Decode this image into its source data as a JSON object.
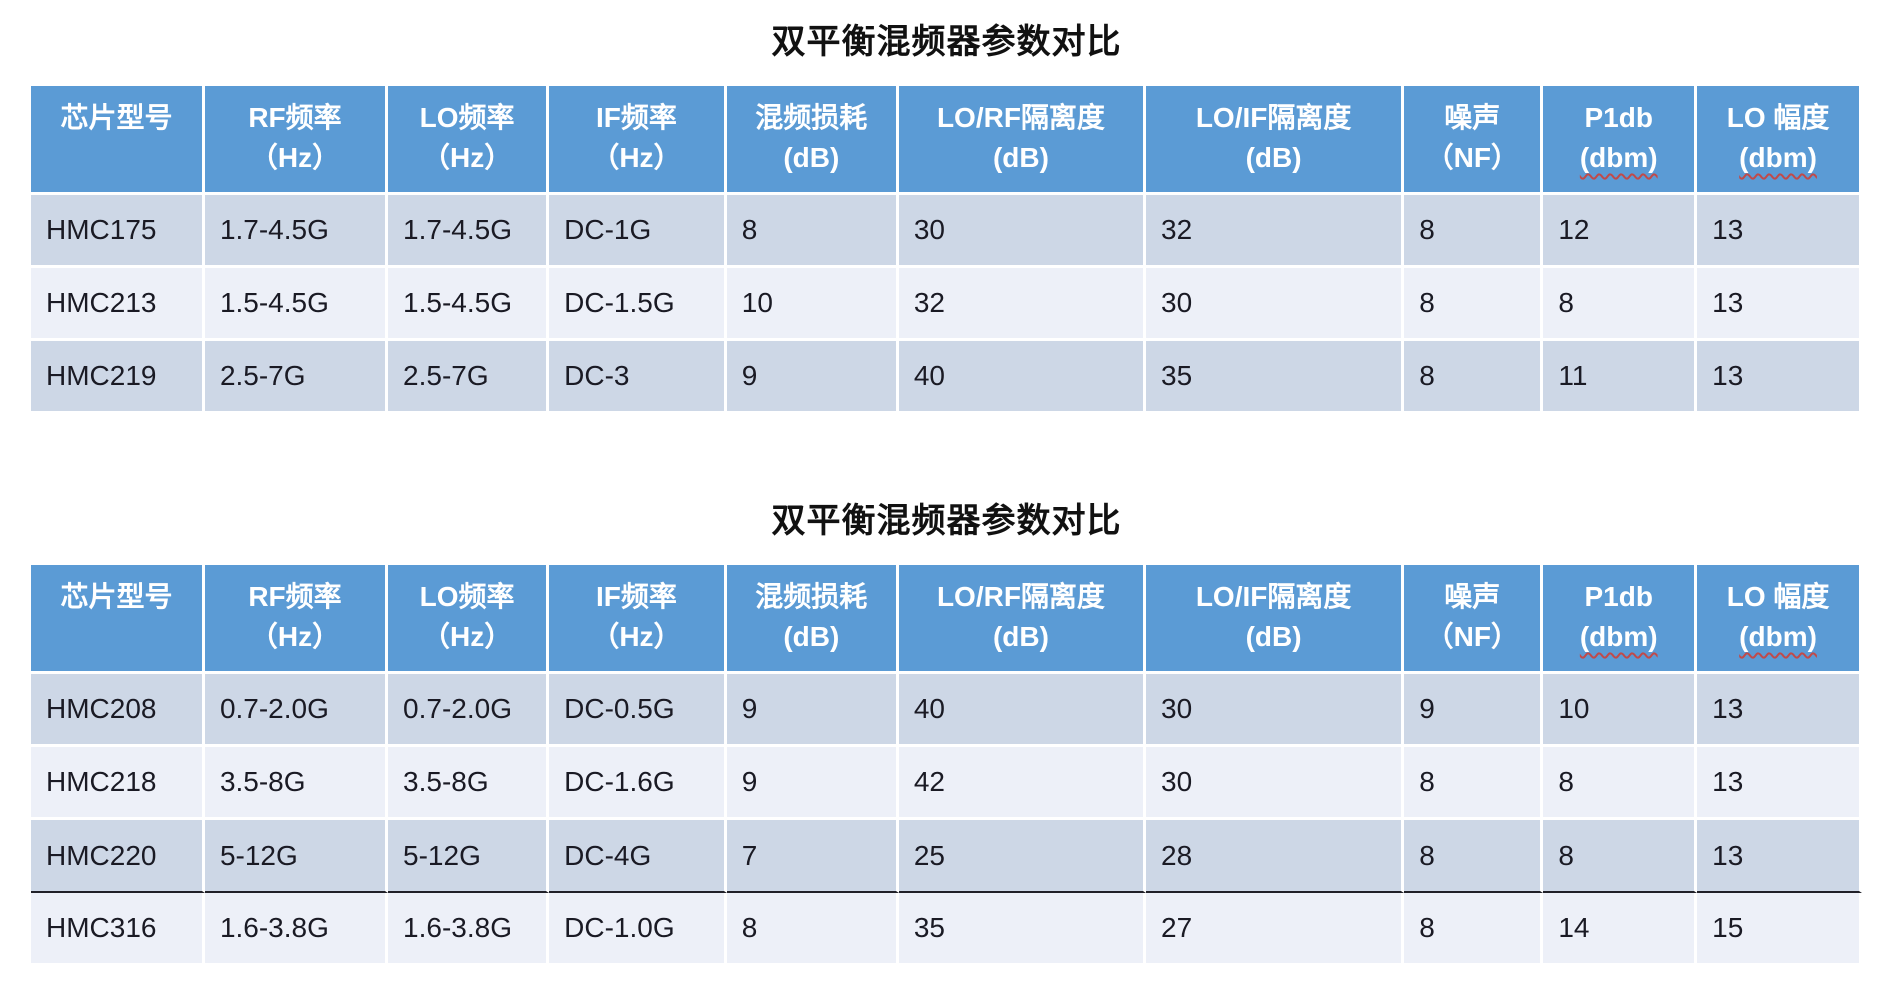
{
  "colors": {
    "header_bg": "#5B9BD5",
    "header_text": "#FFFFFF",
    "row_dark": "#CDD7E6",
    "row_light": "#EDF0F8",
    "body_text": "#1A1A24",
    "title_text": "#111111",
    "divider": "#202028",
    "squiggle": "#C04A4A"
  },
  "tables": [
    {
      "title": "双平衡混频器参数对比",
      "columns": [
        {
          "lines": [
            "芯片型号"
          ]
        },
        {
          "lines": [
            "RF频率",
            "（Hz）"
          ]
        },
        {
          "lines": [
            "LO频率",
            "（Hz）"
          ]
        },
        {
          "lines": [
            "IF频率",
            "（Hz）"
          ]
        },
        {
          "lines": [
            "混频损耗",
            "(dB)"
          ]
        },
        {
          "lines": [
            "LO/RF隔离度",
            "(dB)"
          ]
        },
        {
          "lines": [
            "LO/IF隔离度",
            "(dB)"
          ]
        },
        {
          "lines": [
            "噪声",
            "（NF）"
          ]
        },
        {
          "lines": [
            "P1db",
            "(dbm)"
          ],
          "squiggle_line": 1
        },
        {
          "lines": [
            "LO 幅度",
            "(dbm)"
          ],
          "squiggle_line": 1
        }
      ],
      "rows": [
        [
          "HMC175",
          "1.7-4.5G",
          "1.7-4.5G",
          "DC-1G",
          "8",
          "30",
          "32",
          "8",
          "12",
          "13"
        ],
        [
          "HMC213",
          "1.5-4.5G",
          "1.5-4.5G",
          "DC-1.5G",
          "10",
          "32",
          "30",
          "8",
          "8",
          "13"
        ],
        [
          "HMC219",
          "2.5-7G",
          "2.5-7G",
          "DC-3",
          "9",
          "40",
          "35",
          "8",
          "11",
          "13"
        ]
      ]
    },
    {
      "title": "双平衡混频器参数对比",
      "columns": [
        {
          "lines": [
            "芯片型号"
          ]
        },
        {
          "lines": [
            "RF频率",
            "（Hz）"
          ]
        },
        {
          "lines": [
            "LO频率",
            "（Hz）"
          ]
        },
        {
          "lines": [
            "IF频率",
            "（Hz）"
          ]
        },
        {
          "lines": [
            "混频损耗",
            "(dB)"
          ]
        },
        {
          "lines": [
            "LO/RF隔离度",
            "(dB)"
          ]
        },
        {
          "lines": [
            "LO/IF隔离度",
            "(dB)"
          ]
        },
        {
          "lines": [
            "噪声",
            "（NF）"
          ]
        },
        {
          "lines": [
            "P1db",
            "(dbm)"
          ],
          "squiggle_line": 1
        },
        {
          "lines": [
            "LO 幅度",
            "(dbm)"
          ],
          "squiggle_line": 1
        }
      ],
      "divider_after_row": 2,
      "rows": [
        [
          "HMC208",
          "0.7-2.0G",
          "0.7-2.0G",
          "DC-0.5G",
          "9",
          "40",
          "30",
          "9",
          "10",
          "13"
        ],
        [
          "HMC218",
          "3.5-8G",
          "3.5-8G",
          "DC-1.6G",
          "9",
          "42",
          "30",
          "8",
          "8",
          "13"
        ],
        [
          "HMC220",
          "5-12G",
          "5-12G",
          "DC-4G",
          "7",
          "25",
          "28",
          "8",
          "8",
          "13"
        ],
        [
          "HMC316",
          "1.6-3.8G",
          "1.6-3.8G",
          "DC-1.0G",
          "8",
          "35",
          "27",
          "8",
          "14",
          "15"
        ]
      ]
    }
  ]
}
